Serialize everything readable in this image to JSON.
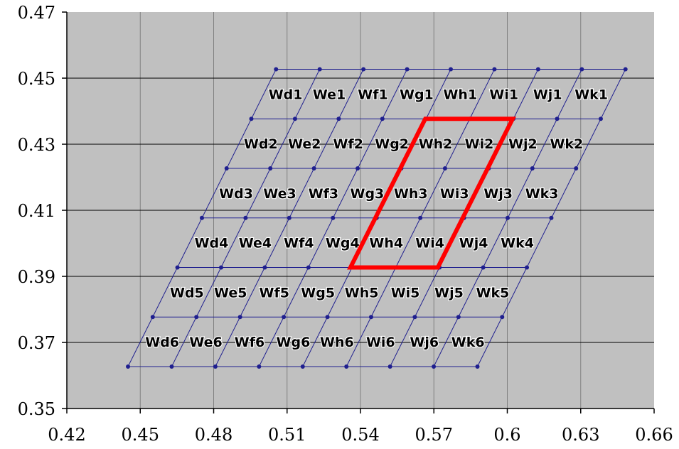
{
  "chart_data": {
    "type": "scatter",
    "title": "",
    "xlabel": "",
    "ylabel": "",
    "xlim": [
      0.42,
      0.66
    ],
    "ylim": [
      0.35,
      0.47
    ],
    "x_ticks": [
      {
        "value": 0.42,
        "label": "0.42"
      },
      {
        "value": 0.45,
        "label": "0.45"
      },
      {
        "value": 0.48,
        "label": "0.48"
      },
      {
        "value": 0.51,
        "label": "0.51"
      },
      {
        "value": 0.54,
        "label": "0.54"
      },
      {
        "value": 0.57,
        "label": "0.57"
      },
      {
        "value": 0.6,
        "label": "0.6"
      },
      {
        "value": 0.63,
        "label": "0.63"
      },
      {
        "value": 0.66,
        "label": "0.66"
      }
    ],
    "y_ticks": [
      {
        "value": 0.35,
        "label": "0.35"
      },
      {
        "value": 0.37,
        "label": "0.37"
      },
      {
        "value": 0.39,
        "label": "0.39"
      },
      {
        "value": 0.41,
        "label": "0.41"
      },
      {
        "value": 0.43,
        "label": "0.43"
      },
      {
        "value": 0.45,
        "label": "0.45"
      },
      {
        "value": 0.47,
        "label": "0.47"
      }
    ],
    "grid": true,
    "plot_background": "#c0c0c0",
    "mesh_color": "#1f1f8f",
    "highlight_color": "#ff0000",
    "mesh": {
      "columns": [
        "d",
        "e",
        "f",
        "g",
        "h",
        "i",
        "j",
        "k"
      ],
      "rows": [
        1,
        2,
        3,
        4,
        5,
        6
      ],
      "row_y": [
        0.4527,
        0.4377,
        0.4227,
        0.4077,
        0.3927,
        0.3777,
        0.3627
      ],
      "row_x_start": [
        0.5055,
        0.4954,
        0.4853,
        0.4752,
        0.4652,
        0.4551,
        0.445
      ],
      "x_step": 0.01785
    },
    "cells": [
      {
        "label": "Wd1"
      },
      {
        "label": "We1"
      },
      {
        "label": "Wf1"
      },
      {
        "label": "Wg1"
      },
      {
        "label": "Wh1"
      },
      {
        "label": "Wi1"
      },
      {
        "label": "Wj1"
      },
      {
        "label": "Wk1"
      },
      {
        "label": "Wd2"
      },
      {
        "label": "We2"
      },
      {
        "label": "Wf2"
      },
      {
        "label": "Wg2"
      },
      {
        "label": "Wh2"
      },
      {
        "label": "Wi2"
      },
      {
        "label": "Wj2"
      },
      {
        "label": "Wk2"
      },
      {
        "label": "Wd3"
      },
      {
        "label": "We3"
      },
      {
        "label": "Wf3"
      },
      {
        "label": "Wg3"
      },
      {
        "label": "Wh3"
      },
      {
        "label": "Wi3"
      },
      {
        "label": "Wj3"
      },
      {
        "label": "Wk3"
      },
      {
        "label": "Wd4"
      },
      {
        "label": "We4"
      },
      {
        "label": "Wf4"
      },
      {
        "label": "Wg4"
      },
      {
        "label": "Wh4"
      },
      {
        "label": "Wi4"
      },
      {
        "label": "Wj4"
      },
      {
        "label": "Wk4"
      },
      {
        "label": "Wd5"
      },
      {
        "label": "We5"
      },
      {
        "label": "Wf5"
      },
      {
        "label": "Wg5"
      },
      {
        "label": "Wh5"
      },
      {
        "label": "Wi5"
      },
      {
        "label": "Wj5"
      },
      {
        "label": "Wk5"
      },
      {
        "label": "Wd6"
      },
      {
        "label": "We6"
      },
      {
        "label": "Wf6"
      },
      {
        "label": "Wg6"
      },
      {
        "label": "Wh6"
      },
      {
        "label": "Wi6"
      },
      {
        "label": "Wj6"
      },
      {
        "label": "Wk6"
      }
    ],
    "highlight_polygon": [
      {
        "x": 0.5665,
        "y": 0.4377
      },
      {
        "x": 0.6022,
        "y": 0.4377
      },
      {
        "x": 0.5716,
        "y": 0.3927
      },
      {
        "x": 0.5359,
        "y": 0.3927
      }
    ]
  }
}
